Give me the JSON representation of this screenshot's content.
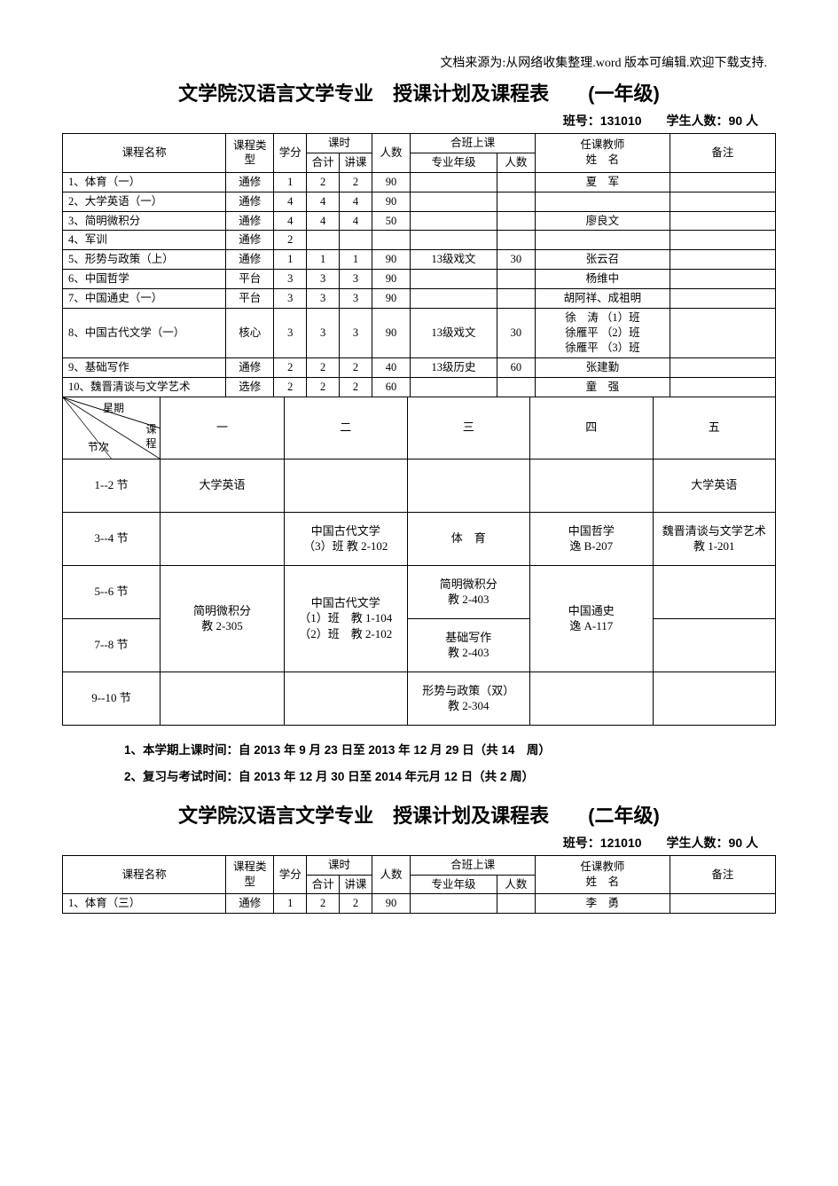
{
  "source_line": "文档来源为:从网络收集整理.word 版本可编辑.欢迎下载支持.",
  "grade1": {
    "title": "文学院汉语言文学专业　授课计划及课程表　　(一年级)",
    "class_no_label": "班号：131010　　学生人数：90 人",
    "headers": {
      "course": "课程名称",
      "type": "课程类型",
      "credit": "学分",
      "hours": "课时",
      "hours_total": "合计",
      "hours_lecture": "讲课",
      "num": "人数",
      "joint": "合班上课",
      "joint_major": "专业年级",
      "joint_num": "人数",
      "teacher": "任课教师\n姓　名",
      "remark": "备注"
    },
    "rows": [
      {
        "name": "1、体育（一）",
        "type": "通修",
        "credit": "1",
        "ht": "2",
        "hl": "2",
        "num": "90",
        "jm": "",
        "jn": "",
        "teacher": "夏　军",
        "remark": ""
      },
      {
        "name": "2、大学英语（一）",
        "type": "通修",
        "credit": "4",
        "ht": "4",
        "hl": "4",
        "num": "90",
        "jm": "",
        "jn": "",
        "teacher": "",
        "remark": ""
      },
      {
        "name": "3、简明微积分",
        "type": "通修",
        "credit": "4",
        "ht": "4",
        "hl": "4",
        "num": "50",
        "jm": "",
        "jn": "",
        "teacher": "廖良文",
        "remark": ""
      },
      {
        "name": "4、军训",
        "type": "通修",
        "credit": "2",
        "ht": "",
        "hl": "",
        "num": "",
        "jm": "",
        "jn": "",
        "teacher": "",
        "remark": ""
      },
      {
        "name": "5、形势与政策（上）",
        "type": "通修",
        "credit": "1",
        "ht": "1",
        "hl": "1",
        "num": "90",
        "jm": "13级戏文",
        "jn": "30",
        "teacher": "张云召",
        "remark": ""
      },
      {
        "name": "6、中国哲学",
        "type": "平台",
        "credit": "3",
        "ht": "3",
        "hl": "3",
        "num": "90",
        "jm": "",
        "jn": "",
        "teacher": "杨维中",
        "remark": ""
      },
      {
        "name": "7、中国通史（一）",
        "type": "平台",
        "credit": "3",
        "ht": "3",
        "hl": "3",
        "num": "90",
        "jm": "",
        "jn": "",
        "teacher": "胡阿祥、成祖明",
        "remark": ""
      },
      {
        "name": "8、中国古代文学（一）",
        "type": "核心",
        "credit": "3",
        "ht": "3",
        "hl": "3",
        "num": "90",
        "jm": "13级戏文",
        "jn": "30",
        "teacher": "徐　涛 （1）班\n徐雁平 （2）班\n徐雁平 （3）班",
        "remark": ""
      },
      {
        "name": "9、基础写作",
        "type": "通修",
        "credit": "2",
        "ht": "2",
        "hl": "2",
        "num": "40",
        "jm": "13级历史",
        "jn": "60",
        "teacher": "张建勤",
        "remark": ""
      },
      {
        "name": "10、魏晋清谈与文学艺术",
        "type": "选修",
        "credit": "2",
        "ht": "2",
        "hl": "2",
        "num": "60",
        "jm": "",
        "jn": "",
        "teacher": "童　强",
        "remark": ""
      }
    ],
    "schedule": {
      "diag_labels": {
        "top": "星期",
        "mid": "课程",
        "bot": "节次"
      },
      "days": [
        "一",
        "二",
        "三",
        "四",
        "五"
      ],
      "periods": [
        "1--2 节",
        "3--4 节",
        "5--6 节",
        "7--8 节",
        "9--10 节"
      ],
      "cells": {
        "p1": [
          "大学英语",
          "",
          "",
          "",
          "大学英语"
        ],
        "p2": [
          "",
          "中国古代文学\n（3）班 教 2-102",
          "体　育",
          "中国哲学\n逸 B-207",
          "魏晋清谈与文学艺术\n教 1-201"
        ],
        "p3": [
          "简明微积分\n教 2-305",
          "中国古代文学\n（1）班　教 1-104\n（2）班　教 2-102",
          "简明微积分\n教 2-403",
          "中国通史\n逸 A-117",
          ""
        ],
        "p4": [
          "",
          "",
          "基础写作\n教 2-403",
          "",
          ""
        ],
        "p5": [
          "",
          "",
          "形势与政策（双）\n教 2-304",
          "",
          ""
        ]
      },
      "merge": {
        "day1_row3_span": 2,
        "day2_row3_span": 2,
        "day4_row3_span": 2
      }
    },
    "notes": [
      "1、本学期上课时间：自 2013 年 9 月 23 日至 2013 年 12 月 29 日（共 14　周）",
      "2、复习与考试时间：自 2013 年 12 月 30 日至 2014 年元月 12 日（共 2 周）"
    ]
  },
  "grade2": {
    "title": "文学院汉语言文学专业　授课计划及课程表　　(二年级)",
    "class_no_label": "班号：121010　　学生人数：90 人",
    "headers_same_as": "grade1",
    "rows": [
      {
        "name": "1、体育（三）",
        "type": "通修",
        "credit": "1",
        "ht": "2",
        "hl": "2",
        "num": "90",
        "jm": "",
        "jn": "",
        "teacher": "李　勇",
        "remark": ""
      }
    ]
  },
  "colors": {
    "border": "#000000",
    "text": "#000000",
    "background": "#ffffff"
  }
}
